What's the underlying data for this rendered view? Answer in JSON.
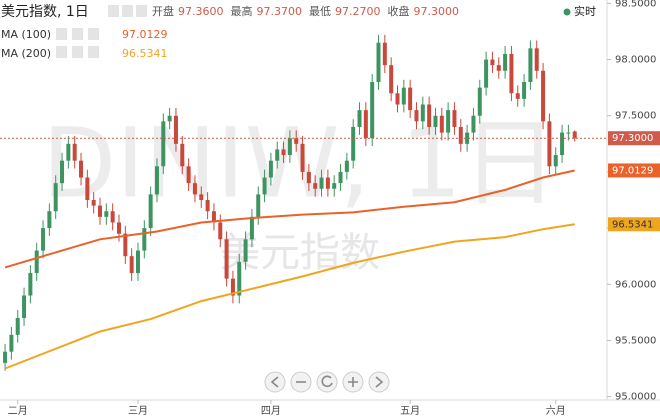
{
  "chart_data": {
    "type": "candlestick",
    "title": "美元指数, 1日",
    "header_items": [
      {
        "name": "开盘",
        "value": 97.36,
        "label": "97.3600"
      },
      {
        "name": "最高",
        "value": 97.37,
        "label": "97.3700"
      },
      {
        "name": "最低",
        "value": 97.27,
        "label": "97.2700"
      },
      {
        "name": "收盘",
        "value": 97.3,
        "label": "97.3000"
      }
    ],
    "realtime_label": "实时",
    "watermark": "DINIW, 1日",
    "watermark_sub": "美元指数",
    "up_color": "#3d9460",
    "down_color": "#c9483b",
    "candles": {
      "open": [
        95.3,
        95.4,
        95.55,
        95.7,
        95.9,
        96.1,
        96.3,
        96.5,
        96.65,
        96.9,
        97.1,
        97.25,
        97.1,
        96.95,
        96.75,
        96.7,
        96.6,
        96.65,
        96.55,
        96.45,
        96.25,
        96.1,
        96.3,
        96.5,
        96.8,
        97.05,
        97.45,
        97.5,
        97.25,
        97.05,
        96.9,
        96.8,
        96.75,
        96.65,
        96.55,
        96.4,
        96.05,
        95.9,
        96.2,
        96.4,
        96.6,
        96.8,
        96.95,
        97.1,
        97.2,
        97.15,
        97.3,
        97.25,
        97.0,
        96.9,
        96.85,
        96.95,
        96.85,
        96.9,
        97.0,
        97.1,
        97.4,
        97.55,
        97.3,
        97.8,
        98.15,
        97.95,
        97.7,
        97.6,
        97.75,
        97.55,
        97.45,
        97.6,
        97.4,
        97.5,
        97.35,
        97.55,
        97.4,
        97.25,
        97.35,
        97.5,
        97.75,
        98.0,
        97.95,
        97.9,
        98.05,
        97.7,
        97.65,
        97.8,
        98.1,
        97.9,
        97.45,
        97.05,
        97.15,
        97.35,
        97.36
      ],
      "high": [
        95.47,
        95.62,
        95.77,
        95.97,
        96.17,
        96.37,
        96.57,
        96.72,
        96.97,
        97.17,
        97.32,
        97.32,
        97.17,
        97.02,
        96.82,
        96.77,
        96.72,
        96.72,
        96.62,
        96.52,
        96.32,
        96.37,
        96.57,
        96.87,
        97.12,
        97.52,
        97.57,
        97.57,
        97.32,
        97.12,
        96.97,
        96.87,
        96.82,
        96.72,
        96.62,
        96.47,
        96.12,
        96.27,
        96.47,
        96.67,
        96.87,
        97.02,
        97.17,
        97.27,
        97.27,
        97.37,
        97.37,
        97.32,
        97.07,
        96.97,
        97.02,
        97.02,
        96.97,
        97.07,
        97.17,
        97.47,
        97.62,
        97.62,
        97.87,
        98.22,
        98.22,
        98.02,
        97.77,
        97.82,
        97.82,
        97.62,
        97.67,
        97.67,
        97.57,
        97.57,
        97.62,
        97.62,
        97.47,
        97.42,
        97.57,
        97.82,
        98.07,
        98.07,
        98.02,
        98.12,
        98.12,
        97.77,
        97.87,
        98.17,
        98.17,
        97.97,
        97.52,
        97.22,
        97.42,
        97.42,
        97.37
      ],
      "low": [
        95.23,
        95.33,
        95.48,
        95.63,
        95.83,
        96.03,
        96.23,
        96.43,
        96.58,
        96.83,
        97.03,
        97.03,
        96.88,
        96.68,
        96.63,
        96.53,
        96.53,
        96.48,
        96.38,
        96.18,
        96.03,
        96.03,
        96.23,
        96.43,
        96.73,
        96.98,
        97.38,
        97.18,
        96.98,
        96.83,
        96.73,
        96.68,
        96.58,
        96.48,
        96.33,
        95.98,
        95.83,
        95.83,
        96.13,
        96.33,
        96.53,
        96.73,
        96.88,
        97.03,
        97.08,
        97.08,
        97.18,
        96.93,
        96.83,
        96.78,
        96.78,
        96.78,
        96.78,
        96.83,
        96.93,
        97.03,
        97.33,
        97.23,
        97.23,
        97.73,
        97.88,
        97.63,
        97.53,
        97.53,
        97.48,
        97.38,
        97.38,
        97.33,
        97.33,
        97.28,
        97.28,
        97.33,
        97.18,
        97.18,
        97.28,
        97.43,
        97.68,
        97.88,
        97.83,
        97.83,
        97.63,
        97.58,
        97.58,
        97.73,
        97.83,
        97.38,
        96.98,
        96.98,
        97.08,
        97.28,
        97.27
      ],
      "close": [
        95.4,
        95.55,
        95.7,
        95.9,
        96.1,
        96.3,
        96.5,
        96.65,
        96.9,
        97.1,
        97.25,
        97.1,
        96.95,
        96.75,
        96.7,
        96.6,
        96.65,
        96.55,
        96.45,
        96.25,
        96.1,
        96.3,
        96.5,
        96.8,
        97.05,
        97.45,
        97.5,
        97.25,
        97.05,
        96.9,
        96.8,
        96.75,
        96.65,
        96.55,
        96.4,
        96.05,
        95.9,
        96.2,
        96.4,
        96.6,
        96.8,
        96.95,
        97.1,
        97.2,
        97.15,
        97.3,
        97.25,
        97.0,
        96.9,
        96.85,
        96.95,
        96.85,
        96.9,
        97.0,
        97.1,
        97.4,
        97.55,
        97.3,
        97.8,
        98.15,
        97.95,
        97.7,
        97.6,
        97.75,
        97.55,
        97.45,
        97.6,
        97.4,
        97.5,
        97.35,
        97.55,
        97.4,
        97.25,
        97.35,
        97.5,
        97.75,
        98.0,
        97.95,
        97.9,
        98.05,
        97.7,
        97.65,
        97.8,
        98.1,
        97.9,
        97.45,
        97.05,
        97.15,
        97.35,
        97.35,
        97.3
      ]
    },
    "last_price": {
      "value": 97.3,
      "label": "97.3000",
      "color": "#d05a4c"
    },
    "indicators": [
      {
        "name": "MA (100)",
        "color": "#e8622a",
        "text_color": "#ffffff",
        "x": [
          0,
          15,
          24,
          31,
          39,
          47,
          55,
          63,
          71,
          79,
          85,
          90
        ],
        "values": [
          96.15,
          96.4,
          96.47,
          96.55,
          96.59,
          96.62,
          96.64,
          96.69,
          96.73,
          96.84,
          96.95,
          97.0129
        ],
        "last": {
          "value": 97.0129,
          "label": "97.0129"
        }
      },
      {
        "name": "MA (200)",
        "color": "#f0a51e",
        "text_color": "#333333",
        "x": [
          0,
          15,
          23,
          31,
          39,
          47,
          55,
          63,
          71,
          79,
          85,
          90
        ],
        "values": [
          95.25,
          95.58,
          95.69,
          95.85,
          95.96,
          96.07,
          96.19,
          96.29,
          96.38,
          96.42,
          96.49,
          96.5341
        ],
        "last": {
          "value": 96.5341,
          "label": "96.5341"
        }
      }
    ],
    "xlim": [
      -0.8,
      95.1
    ],
    "xticks": [
      {
        "value": 2,
        "label": "二月"
      },
      {
        "value": 21,
        "label": "三月"
      },
      {
        "value": 42,
        "label": "四月"
      },
      {
        "value": 64,
        "label": "五月"
      },
      {
        "value": 87,
        "label": "六月"
      }
    ],
    "ylim": [
      94.97,
      98.53
    ],
    "yticks": [
      {
        "value": 95,
        "label": "95.0000"
      },
      {
        "value": 95.5,
        "label": "95.5000"
      },
      {
        "value": 96,
        "label": "96.0000"
      },
      {
        "value": 96.5,
        "label": "96.5000"
      },
      {
        "value": 97,
        "label": "97.0000"
      },
      {
        "value": 97.5,
        "label": "97.5000"
      },
      {
        "value": 98,
        "label": "98.0000"
      },
      {
        "value": 98.5,
        "label": "98.5000"
      }
    ],
    "grid": false
  }
}
